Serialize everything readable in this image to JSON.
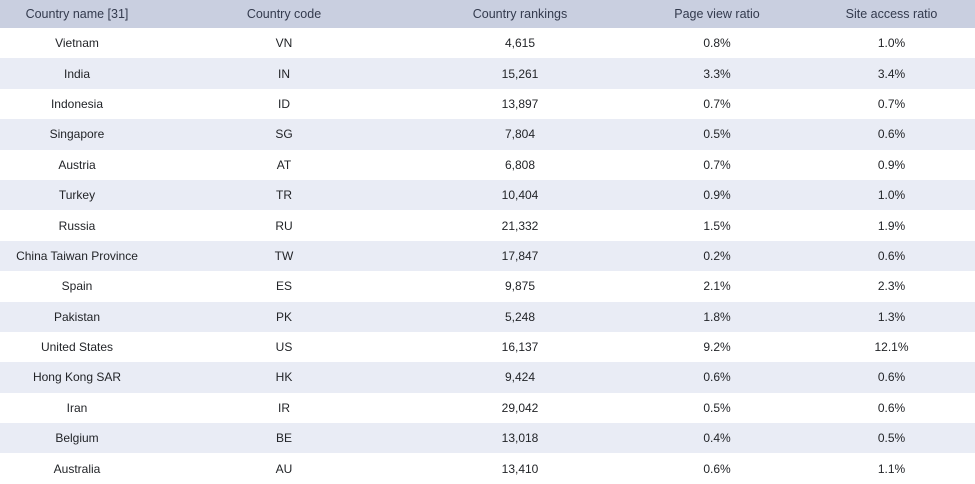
{
  "table": {
    "headers": [
      "Country name [31]",
      "Country code",
      "Country rankings",
      "Page view ratio",
      "Site access ratio"
    ],
    "rows": [
      [
        "Vietnam",
        "VN",
        "4,615",
        "0.8%",
        "1.0%"
      ],
      [
        "India",
        "IN",
        "15,261",
        "3.3%",
        "3.4%"
      ],
      [
        "Indonesia",
        "ID",
        "13,897",
        "0.7%",
        "0.7%"
      ],
      [
        "Singapore",
        "SG",
        "7,804",
        "0.5%",
        "0.6%"
      ],
      [
        "Austria",
        "AT",
        "6,808",
        "0.7%",
        "0.9%"
      ],
      [
        "Turkey",
        "TR",
        "10,404",
        "0.9%",
        "1.0%"
      ],
      [
        "Russia",
        "RU",
        "21,332",
        "1.5%",
        "1.9%"
      ],
      [
        "China Taiwan Province",
        "TW",
        "17,847",
        "0.2%",
        "0.6%"
      ],
      [
        "Spain",
        "ES",
        "9,875",
        "2.1%",
        "2.3%"
      ],
      [
        "Pakistan",
        "PK",
        "5,248",
        "1.8%",
        "1.3%"
      ],
      [
        "United States",
        "US",
        "16,137",
        "9.2%",
        "12.1%"
      ],
      [
        "Hong Kong SAR",
        "HK",
        "9,424",
        "0.6%",
        "0.6%"
      ],
      [
        "Iran",
        "IR",
        "29,042",
        "0.5%",
        "0.6%"
      ],
      [
        "Belgium",
        "BE",
        "13,018",
        "0.4%",
        "0.5%"
      ],
      [
        "Australia",
        "AU",
        "13,410",
        "0.6%",
        "1.1%"
      ]
    ]
  }
}
